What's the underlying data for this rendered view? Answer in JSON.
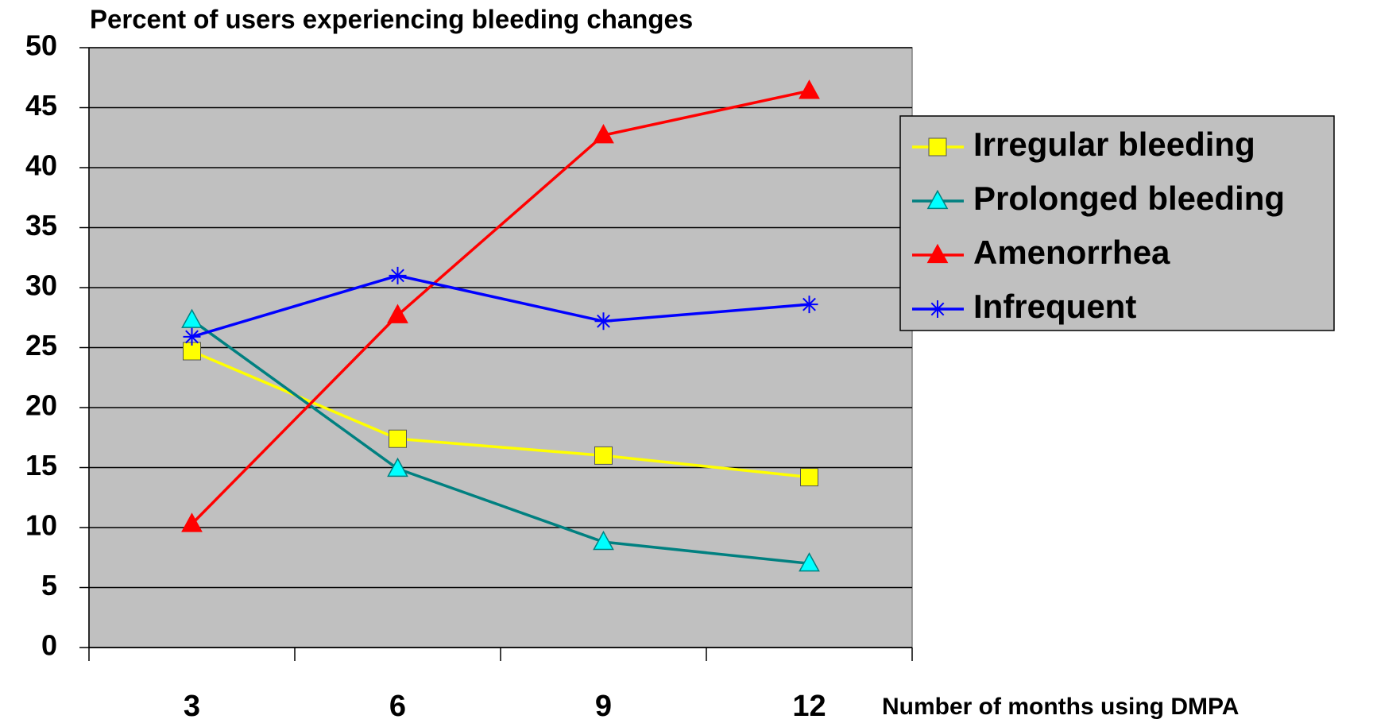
{
  "chart_data": {
    "type": "line",
    "title": "Percent of users experiencing bleeding changes",
    "x_label": "Number of months using DMPA",
    "categories": [
      "3",
      "6",
      "9",
      "12"
    ],
    "series": [
      {
        "name": "Irregular bleeding",
        "color": "#ffff00",
        "marker": "square",
        "values": [
          24.7,
          17.4,
          16.0,
          14.2
        ]
      },
      {
        "name": "Prolonged bleeding",
        "color": "#008080",
        "marker": "triangle",
        "values": [
          27.3,
          14.9,
          8.8,
          7.0
        ]
      },
      {
        "name": "Amenorrhea",
        "color": "#ff0000",
        "marker": "triangle",
        "values": [
          10.3,
          27.7,
          42.7,
          46.4
        ]
      },
      {
        "name": "Infrequent",
        "color": "#0000ff",
        "marker": "star",
        "values": [
          25.9,
          31.0,
          27.2,
          28.6
        ]
      }
    ],
    "ylim": [
      0,
      50
    ],
    "yticks": [
      0,
      5,
      10,
      15,
      20,
      25,
      30,
      35,
      40,
      45,
      50
    ],
    "grid": true,
    "legend": "right"
  }
}
